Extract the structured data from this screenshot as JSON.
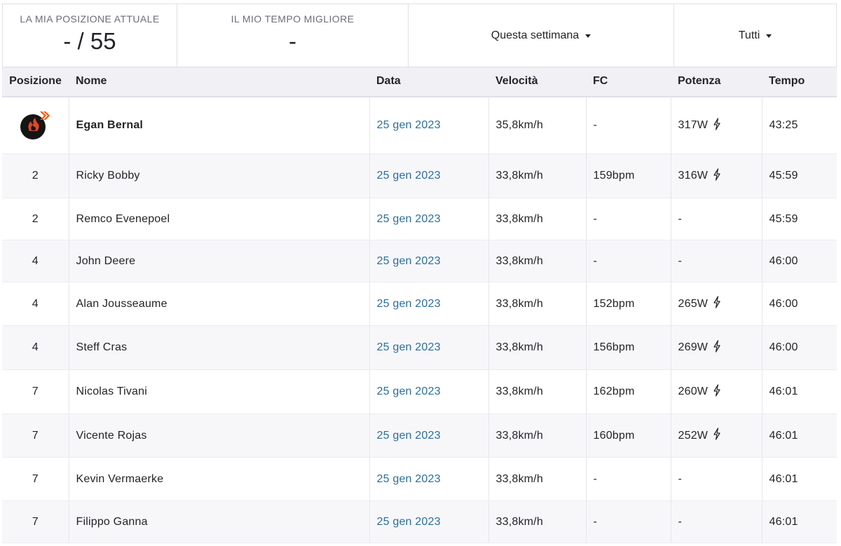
{
  "stats": {
    "position_label": "LA MIA POSIZIONE ATTUALE",
    "position_value": "- / 55",
    "best_label": "IL MIO TEMPO MIGLIORE",
    "best_value": "-",
    "period_filter": "Questa settimana",
    "group_filter": "Tutti"
  },
  "table": {
    "headers": [
      "Posizione",
      "Nome",
      "Data",
      "Velocità",
      "FC",
      "Potenza",
      "Tempo"
    ],
    "rows": [
      {
        "rank": "",
        "avatar": "avatar-icon",
        "name": "Egan Bernal",
        "date": "25 gen 2023",
        "speed": "35,8km/h",
        "hr": "-",
        "power": "317W",
        "power_icon": true,
        "time": "43:25"
      },
      {
        "rank": "2",
        "name": "Ricky Bobby",
        "date": "25 gen 2023",
        "speed": "33,8km/h",
        "hr": "159bpm",
        "power": "316W",
        "power_icon": true,
        "time": "45:59"
      },
      {
        "rank": "2",
        "name": "Remco Evenepoel",
        "date": "25 gen 2023",
        "speed": "33,8km/h",
        "hr": "-",
        "power": "-",
        "power_icon": false,
        "time": "45:59"
      },
      {
        "rank": "4",
        "name": "John Deere",
        "date": "25 gen 2023",
        "speed": "33,8km/h",
        "hr": "-",
        "power": "-",
        "power_icon": false,
        "time": "46:00"
      },
      {
        "rank": "4",
        "name": "Alan Jousseaume",
        "date": "25 gen 2023",
        "speed": "33,8km/h",
        "hr": "152bpm",
        "power": "265W",
        "power_icon": true,
        "time": "46:00"
      },
      {
        "rank": "4",
        "name": "Steff Cras",
        "date": "25 gen 2023",
        "speed": "33,8km/h",
        "hr": "156bpm",
        "power": "269W",
        "power_icon": true,
        "time": "46:00"
      },
      {
        "rank": "7",
        "name": "Nicolas Tivani",
        "date": "25 gen 2023",
        "speed": "33,8km/h",
        "hr": "162bpm",
        "power": "260W",
        "power_icon": true,
        "time": "46:01"
      },
      {
        "rank": "7",
        "name": "Vicente Rojas",
        "date": "25 gen 2023",
        "speed": "33,8km/h",
        "hr": "160bpm",
        "power": "252W",
        "power_icon": true,
        "time": "46:01"
      },
      {
        "rank": "7",
        "name": "Kevin Vermaerke",
        "date": "25 gen 2023",
        "speed": "33,8km/h",
        "hr": "-",
        "power": "-",
        "power_icon": false,
        "time": "46:01"
      },
      {
        "rank": "7",
        "name": "Filippo Ganna",
        "date": "25 gen 2023",
        "speed": "33,8km/h",
        "hr": "-",
        "power": "-",
        "power_icon": false,
        "time": "46:01"
      }
    ]
  },
  "colors": {
    "link": "#2a6f9a",
    "header_bg": "#f0f0f5",
    "avatar_accent": "#fc5200"
  }
}
